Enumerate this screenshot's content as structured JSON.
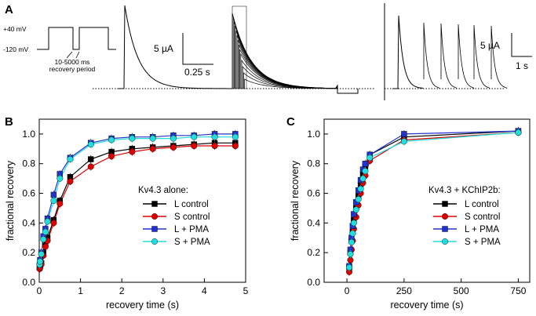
{
  "panel_a": {
    "label": "A",
    "protocol": {
      "v_high": "+40 mV",
      "v_low": "-120 mV",
      "interval": "10-5000 ms",
      "period": "recovery period"
    },
    "scale_left": {
      "current": "5 µA",
      "time": "0.25 s"
    },
    "scale_right": {
      "current": "5 µA",
      "time": "1 s"
    }
  },
  "panel_b_label": "B",
  "panel_c_label": "C",
  "chart_data": [
    {
      "id": "B",
      "type": "scatter",
      "xlabel": "recovery time (s)",
      "ylabel": "fractional recovery",
      "xlim": [
        0,
        5
      ],
      "ylim": [
        0,
        1.1
      ],
      "xticks": [
        0,
        1,
        2,
        3,
        4,
        5
      ],
      "yticks": [
        0.0,
        0.2,
        0.4,
        0.6,
        0.8,
        1.0
      ],
      "legend_title": "Kv4.3 alone:",
      "x": [
        0.01,
        0.02,
        0.05,
        0.1,
        0.15,
        0.2,
        0.35,
        0.5,
        0.75,
        1.25,
        1.75,
        2.25,
        2.75,
        3.25,
        3.75,
        4.25,
        4.75
      ],
      "series": [
        {
          "name": "L control",
          "color": "#000000",
          "marker": "square",
          "values": [
            0.1,
            0.11,
            0.13,
            0.2,
            0.26,
            0.3,
            0.42,
            0.55,
            0.71,
            0.83,
            0.88,
            0.9,
            0.91,
            0.92,
            0.93,
            0.94,
            0.94
          ]
        },
        {
          "name": "S control",
          "color": "#dd0000",
          "marker": "circle",
          "values": [
            0.09,
            0.1,
            0.12,
            0.18,
            0.24,
            0.28,
            0.4,
            0.53,
            0.68,
            0.78,
            0.85,
            0.88,
            0.9,
            0.91,
            0.92,
            0.92,
            0.92
          ]
        },
        {
          "name": "L + PMA",
          "color": "#2233cc",
          "marker": "square",
          "values": [
            0.12,
            0.15,
            0.2,
            0.31,
            0.36,
            0.43,
            0.59,
            0.73,
            0.84,
            0.94,
            0.97,
            0.98,
            0.98,
            0.99,
            0.99,
            1.0,
            1.0
          ]
        },
        {
          "name": "S + PMA",
          "color": "#22dddd",
          "marker": "circle",
          "values": [
            0.12,
            0.14,
            0.19,
            0.29,
            0.34,
            0.41,
            0.55,
            0.7,
            0.83,
            0.93,
            0.96,
            0.97,
            0.97,
            0.97,
            0.98,
            0.98,
            0.98
          ]
        }
      ]
    },
    {
      "id": "C",
      "type": "scatter",
      "xlabel": "recovery time (s)",
      "ylabel": "fractional recovery",
      "xlim": [
        -100,
        800
      ],
      "ylim": [
        0,
        1.1
      ],
      "xticks": [
        0,
        250,
        500,
        750
      ],
      "yticks": [
        0.0,
        0.2,
        0.4,
        0.6,
        0.8,
        1.0
      ],
      "legend_title": "Kv4.3 + KChIP2b:",
      "x": [
        10,
        15,
        20,
        25,
        30,
        40,
        50,
        60,
        70,
        80,
        100,
        250,
        750
      ],
      "series": [
        {
          "name": "L control",
          "color": "#000000",
          "marker": "square",
          "values": [
            0.1,
            0.2,
            0.28,
            0.34,
            0.42,
            0.5,
            0.58,
            0.66,
            0.73,
            0.78,
            0.86,
            0.98,
            1.02
          ]
        },
        {
          "name": "S control",
          "color": "#dd0000",
          "marker": "circle",
          "values": [
            0.07,
            0.15,
            0.22,
            0.28,
            0.36,
            0.44,
            0.52,
            0.6,
            0.67,
            0.72,
            0.82,
            0.96,
            1.01
          ]
        },
        {
          "name": "L + PMA",
          "color": "#2233cc",
          "marker": "square",
          "values": [
            0.11,
            0.22,
            0.3,
            0.38,
            0.46,
            0.54,
            0.62,
            0.69,
            0.76,
            0.8,
            0.86,
            1.0,
            1.02
          ]
        },
        {
          "name": "S + PMA",
          "color": "#22dddd",
          "marker": "circle",
          "values": [
            0.1,
            0.19,
            0.27,
            0.33,
            0.4,
            0.49,
            0.56,
            0.63,
            0.7,
            0.75,
            0.84,
            0.95,
            1.01
          ]
        }
      ]
    }
  ]
}
